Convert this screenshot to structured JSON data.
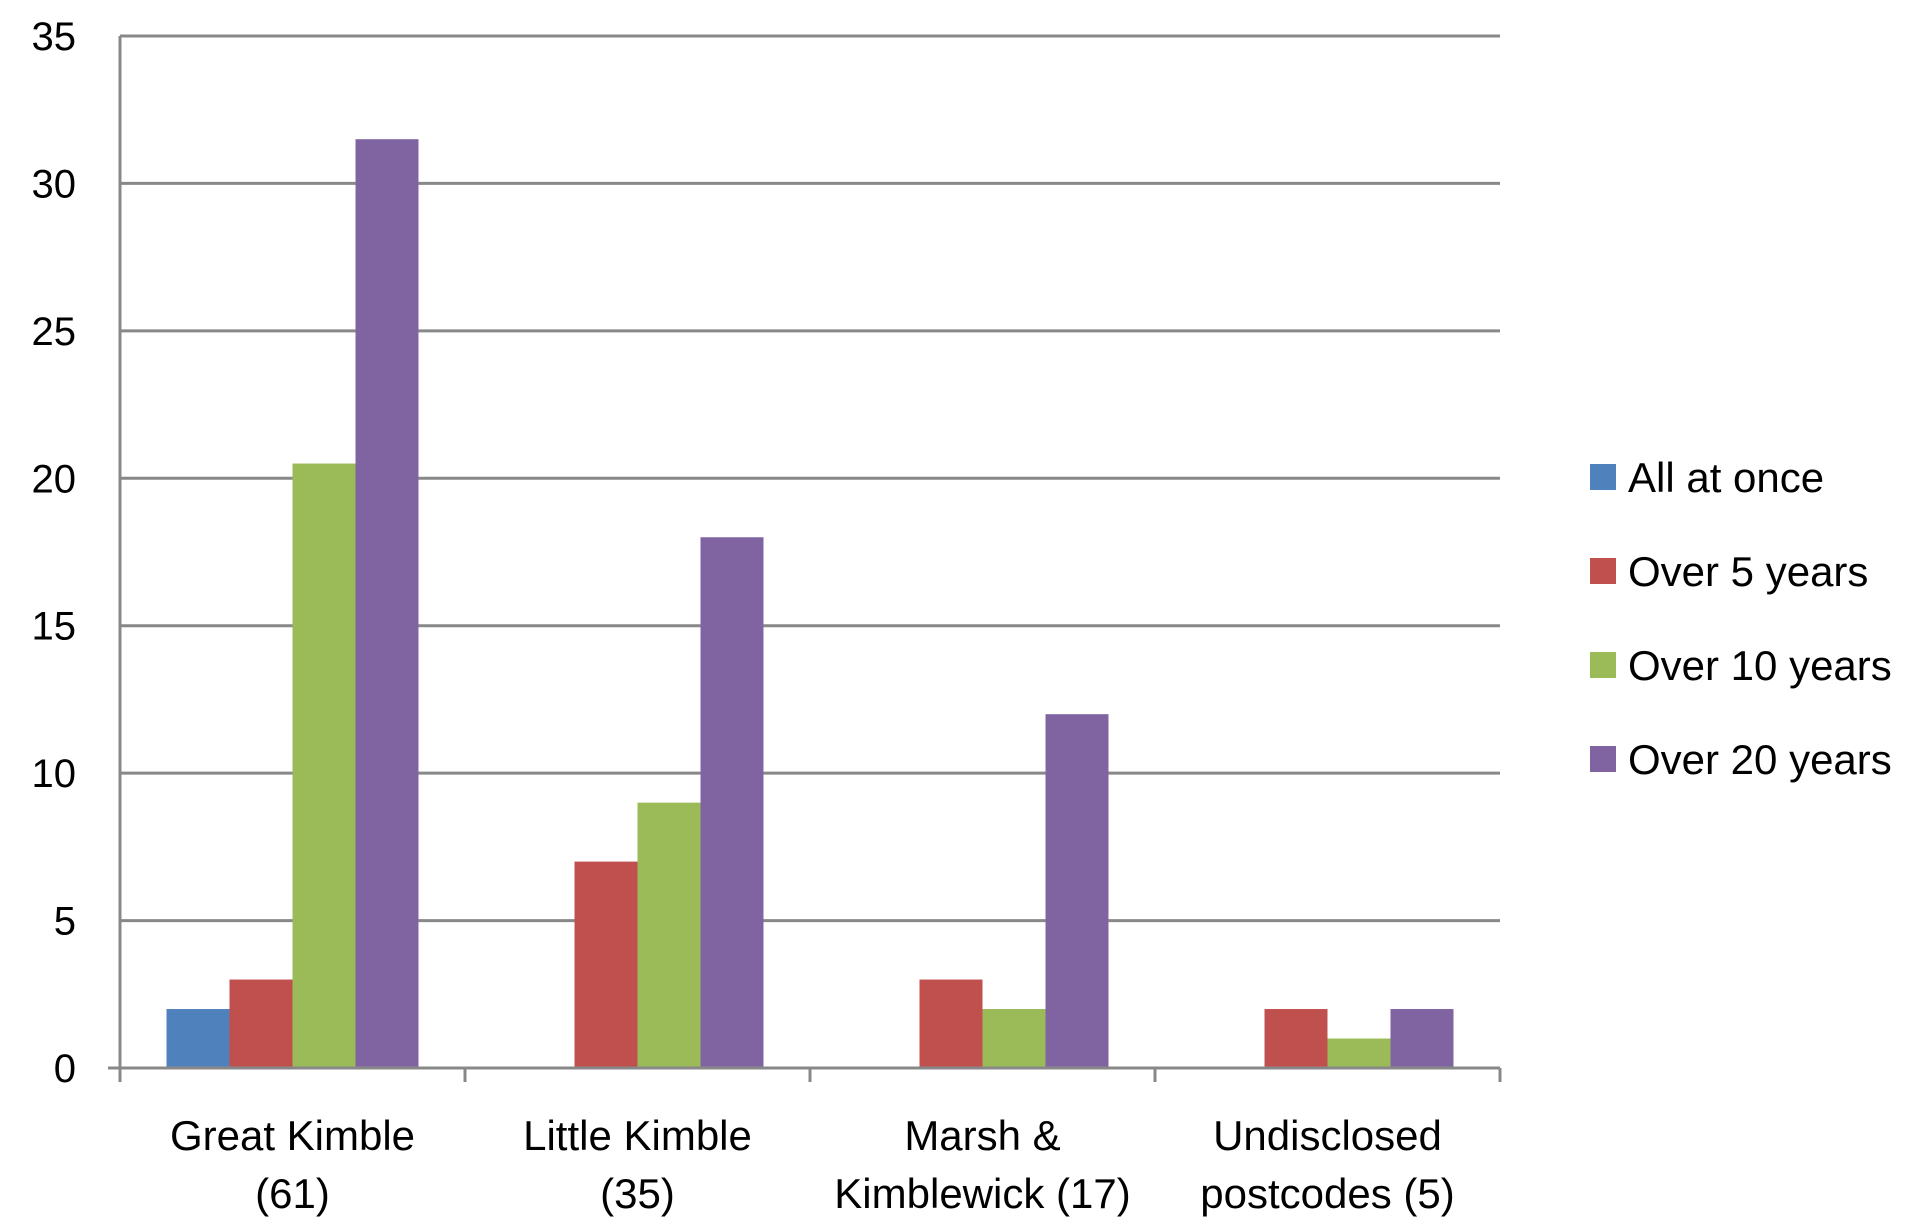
{
  "chart_data": {
    "type": "bar",
    "title": "",
    "xlabel": "",
    "ylabel": "",
    "ylim": [
      0,
      35
    ],
    "yticks": [
      0,
      5,
      10,
      15,
      20,
      25,
      30,
      35
    ],
    "grid": true,
    "legend_position": "right",
    "categories": [
      [
        "Great Kimble",
        "(61)"
      ],
      [
        "Little Kimble",
        "(35)"
      ],
      [
        "Marsh &",
        "Kimblewick (17)"
      ],
      [
        "Undisclosed",
        "postcodes (5)"
      ]
    ],
    "series": [
      {
        "name": "All at once",
        "color": "#4f81bd",
        "values": [
          2,
          0,
          0,
          0
        ]
      },
      {
        "name": "Over 5 years",
        "color": "#c0504d",
        "values": [
          3,
          7,
          3,
          2
        ]
      },
      {
        "name": "Over 10 years",
        "color": "#9bbb59",
        "values": [
          20.5,
          9,
          2,
          1
        ]
      },
      {
        "name": "Over 20 years",
        "color": "#8064a2",
        "values": [
          31.5,
          18,
          12,
          2
        ]
      }
    ]
  }
}
